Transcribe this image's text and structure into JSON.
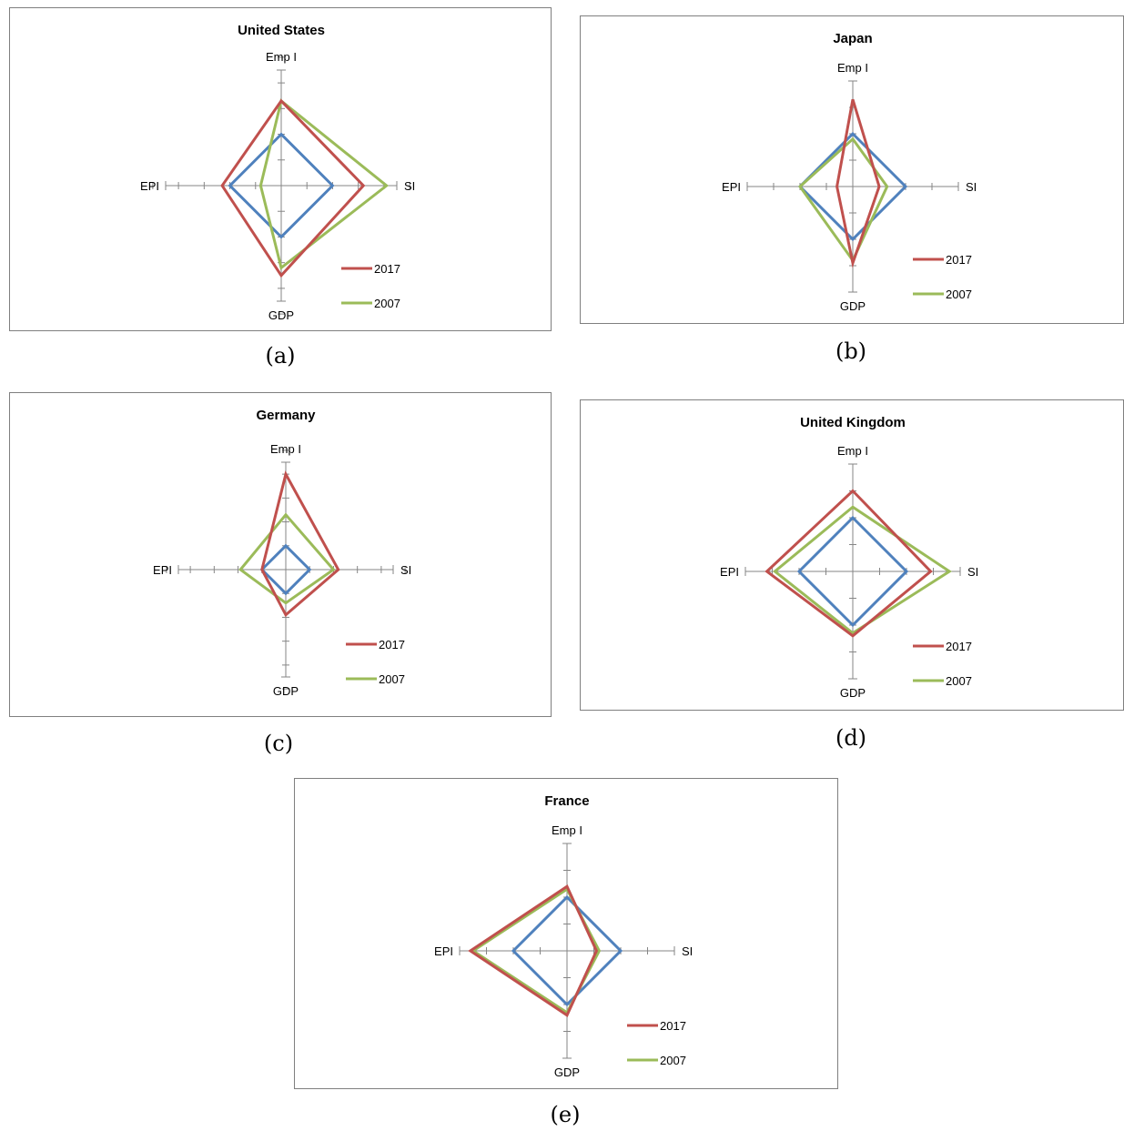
{
  "chart_data": [
    {
      "type": "radar",
      "title": "United States",
      "caption": "(a)",
      "axes": [
        "Emp I",
        "SI",
        "GDP",
        "EPI"
      ],
      "legend": [
        "2017",
        "2007"
      ],
      "colors": {
        "2017": "#c0504d",
        "2007": "#9bbb59",
        "reference": "#4f81bd"
      },
      "series": [
        {
          "name": "2017",
          "color": "#c0504d",
          "values": [
            3.3,
            3.2,
            3.5,
            2.3
          ]
        },
        {
          "name": "2007",
          "color": "#9bbb59",
          "values": [
            3.3,
            4.1,
            3.2,
            0.8
          ]
        },
        {
          "color": "#4f81bd",
          "values": [
            2.0,
            2.0,
            2.0,
            2.0
          ]
        }
      ],
      "max": 4.5
    },
    {
      "type": "radar",
      "title": "Japan",
      "caption": "(b)",
      "axes": [
        "Emp I",
        "SI",
        "GDP",
        "EPI"
      ],
      "legend": [
        "2017",
        "2007"
      ],
      "colors": {
        "2017": "#c0504d",
        "2007": "#9bbb59",
        "reference": "#4f81bd"
      },
      "series": [
        {
          "name": "2017",
          "color": "#c0504d",
          "values": [
            3.3,
            1.0,
            2.9,
            0.6
          ]
        },
        {
          "name": "2007",
          "color": "#9bbb59",
          "values": [
            1.8,
            1.3,
            2.8,
            2.0
          ]
        },
        {
          "color": "#4f81bd",
          "values": [
            2.0,
            2.0,
            2.0,
            2.0
          ]
        }
      ],
      "max": 4
    },
    {
      "type": "radar",
      "title": "Germany",
      "caption": "(c)",
      "axes": [
        "Emp I",
        "SI",
        "GDP",
        "EPI"
      ],
      "legend": [
        "2017",
        "2007"
      ],
      "colors": {
        "2017": "#c0504d",
        "2007": "#9bbb59",
        "reference": "#4f81bd"
      },
      "series": [
        {
          "name": "2017",
          "color": "#c0504d",
          "values": [
            4.0,
            2.2,
            1.9,
            1.0
          ]
        },
        {
          "name": "2007",
          "color": "#9bbb59",
          "values": [
            2.3,
            2.0,
            1.4,
            1.9
          ]
        },
        {
          "color": "#4f81bd",
          "values": [
            1.0,
            1.0,
            1.0,
            1.0
          ]
        }
      ],
      "max": 4.5
    },
    {
      "type": "radar",
      "title": "United Kingdom",
      "caption": "(d)",
      "axes": [
        "Emp I",
        "SI",
        "GDP",
        "EPI"
      ],
      "legend": [
        "2017",
        "2007"
      ],
      "colors": {
        "2017": "#c0504d",
        "2007": "#9bbb59",
        "reference": "#4f81bd"
      },
      "series": [
        {
          "name": "2017",
          "color": "#c0504d",
          "values": [
            3.0,
            2.9,
            2.4,
            3.2
          ]
        },
        {
          "name": "2007",
          "color": "#9bbb59",
          "values": [
            2.4,
            3.6,
            2.3,
            2.9
          ]
        },
        {
          "color": "#4f81bd",
          "values": [
            2.0,
            2.0,
            2.0,
            2.0
          ]
        }
      ],
      "max": 4
    },
    {
      "type": "radar",
      "title": "France",
      "caption": "(e)",
      "axes": [
        "Emp I",
        "SI",
        "GDP",
        "EPI"
      ],
      "legend": [
        "2017",
        "2007"
      ],
      "colors": {
        "2017": "#c0504d",
        "2007": "#9bbb59",
        "reference": "#4f81bd"
      },
      "series": [
        {
          "name": "2017",
          "color": "#c0504d",
          "values": [
            2.4,
            1.1,
            2.4,
            3.6
          ]
        },
        {
          "name": "2007",
          "color": "#9bbb59",
          "values": [
            2.3,
            1.2,
            2.3,
            3.5
          ]
        },
        {
          "color": "#4f81bd",
          "values": [
            2.0,
            2.0,
            2.0,
            2.0
          ]
        }
      ],
      "max": 4
    }
  ]
}
